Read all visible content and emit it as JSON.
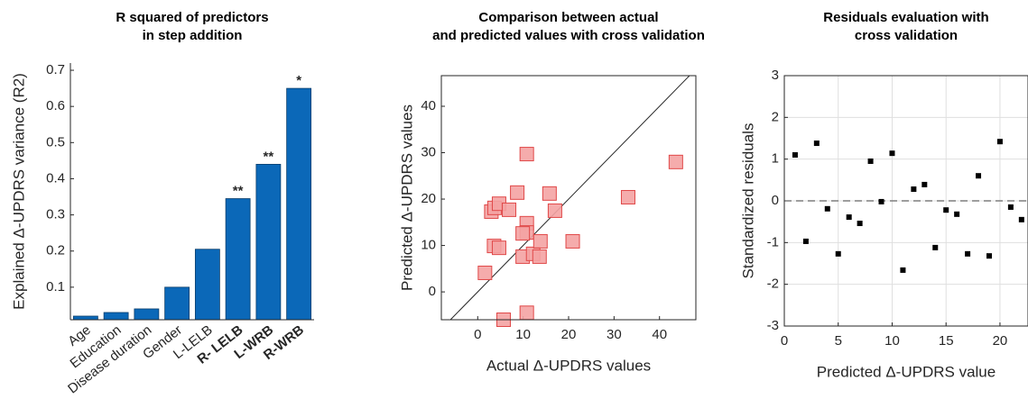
{
  "chart_data": [
    {
      "type": "bar",
      "title": [
        "R squared of predictors",
        "in step addition"
      ],
      "ylabel": "Explained Δ-UPDRS variance (R2)",
      "categories": [
        "Age",
        "Education",
        "Disease duration",
        "Gender",
        "L-LELB",
        "R- LELB",
        "L-WRB",
        "R-WRB"
      ],
      "values": [
        0.02,
        0.03,
        0.04,
        0.1,
        0.205,
        0.345,
        0.44,
        0.65
      ],
      "color": "#0b68b8",
      "annotations": [
        {
          "text": "**",
          "x": "R- LELB"
        },
        {
          "text": "**",
          "x": "L-WRB"
        },
        {
          "text": "*",
          "x": "R-WRB"
        }
      ],
      "ylim": [
        0.01,
        0.72
      ],
      "yticks": [
        0.1,
        0.2,
        0.3,
        0.4,
        0.5,
        0.6,
        0.7
      ]
    },
    {
      "type": "scatter",
      "title": [
        "Comparison between actual",
        "and predicted values with cross validation"
      ],
      "xlabel": "Actual Δ-UPDRS values",
      "ylabel": "Predicted Δ-UPDRS values",
      "x": [
        1.6,
        3.0,
        3.7,
        4.7,
        6.9,
        3.6,
        4.7,
        8.7,
        5.7,
        10.8,
        10.8,
        10.8,
        9.9,
        9.9,
        12.2,
        13.8,
        13.6,
        10.8,
        15.8,
        17.0,
        20.9,
        33.1,
        43.6
      ],
      "values": [
        4.1,
        17.3,
        18.1,
        19.0,
        17.7,
        9.9,
        9.5,
        21.4,
        -6.0,
        29.7,
        14.8,
        12.8,
        12.6,
        7.6,
        8.2,
        10.9,
        7.6,
        -4.5,
        21.2,
        17.5,
        10.9,
        20.4,
        28.0
      ],
      "color": "#f4a3a3",
      "edge_color": "#e04848",
      "marker": "square",
      "identity_line": true,
      "xlim": [
        -8,
        48
      ],
      "ylim": [
        -6,
        46.6
      ],
      "xticks": [
        0,
        10,
        20,
        30,
        40
      ],
      "yticks": [
        0,
        10,
        20,
        30,
        40
      ]
    },
    {
      "type": "scatter",
      "title": [
        "Residuals evaluation with",
        "cross validation"
      ],
      "xlabel": "Predicted Δ-UPDRS value",
      "ylabel": "Standardized residuals",
      "x": [
        1,
        2,
        3,
        4,
        5,
        6,
        7,
        8,
        9,
        10,
        11,
        12,
        13,
        14,
        15,
        16,
        17,
        18,
        19,
        20,
        21,
        22
      ],
      "values": [
        1.1,
        -0.97,
        1.38,
        -0.19,
        -1.27,
        -0.39,
        -0.54,
        0.95,
        -0.02,
        1.14,
        -1.66,
        0.28,
        0.39,
        -1.12,
        -0.22,
        -0.32,
        -1.27,
        0.6,
        -1.32,
        1.42,
        -0.15,
        -0.45
      ],
      "color": "#000000",
      "marker": "square",
      "grid": true,
      "hline": 0,
      "xlim": [
        0,
        22.6
      ],
      "ylim": [
        -3,
        3
      ],
      "xticks": [
        0,
        5,
        10,
        15,
        20
      ],
      "yticks": [
        -3,
        -2,
        -1,
        0,
        1,
        2,
        3
      ]
    }
  ]
}
